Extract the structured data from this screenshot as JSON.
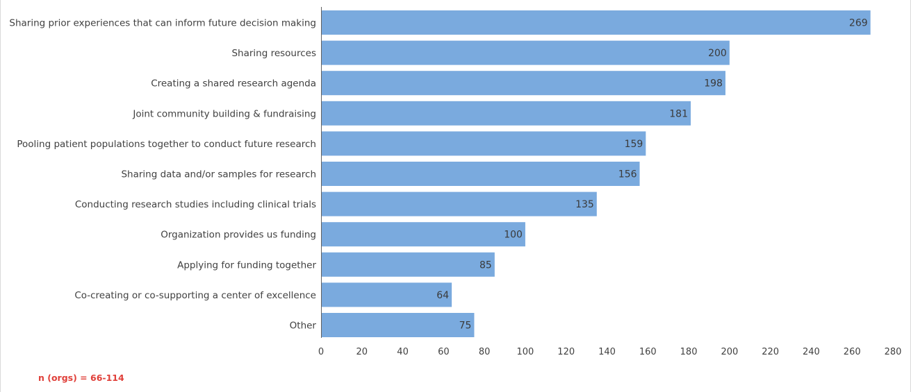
{
  "chart_data": {
    "type": "bar",
    "orientation": "horizontal",
    "categories": [
      "Sharing prior experiences that can inform future decision making",
      "Sharing resources",
      "Creating a shared research agenda",
      "Joint community building & fundraising",
      "Pooling patient populations together to conduct future research",
      "Sharing data and/or samples for research",
      "Conducting research studies including clinical trials",
      "Organization provides us funding",
      "Applying for funding together",
      "Co-creating or co-supporting a center of excellence",
      "Other"
    ],
    "values": [
      269,
      200,
      198,
      181,
      159,
      156,
      135,
      100,
      85,
      64,
      75
    ],
    "xlim": [
      0,
      280
    ],
    "xticks": [
      0,
      20,
      40,
      60,
      80,
      100,
      120,
      140,
      160,
      180,
      200,
      220,
      240,
      260,
      280
    ],
    "grid": false,
    "bar_color": "#7aaade",
    "footnote": "n (orgs) = 66-114",
    "footnote_color": "#e0403a"
  }
}
